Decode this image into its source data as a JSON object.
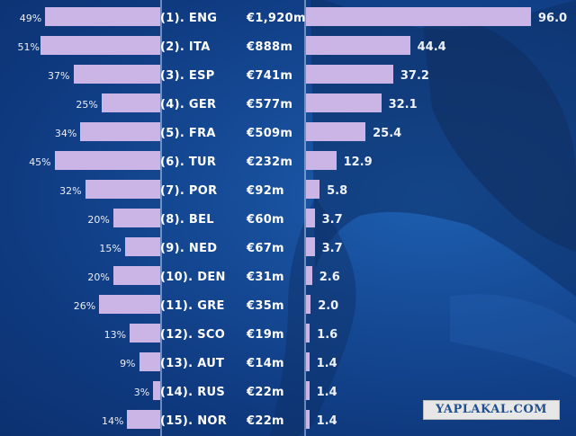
{
  "chart_data": {
    "type": "bar",
    "categories": [
      "(1). ENG",
      "(2). ITA",
      "(3). ESP",
      "(4). GER",
      "(5). FRA",
      "(6). TUR",
      "(7). POR",
      "(8). BEL",
      "(9). NED",
      "(10). DEN",
      "(11). GRE",
      "(12). SCO",
      "(13). AUT",
      "(14). RUS",
      "(15). NOR"
    ],
    "money_labels": [
      "€1,920m",
      "€888m",
      "€741m",
      "€577m",
      "€509m",
      "€232m",
      "€92m",
      "€60m",
      "€67m",
      "€31m",
      "€35m",
      "€19m",
      "€14m",
      "€22m",
      "€22m"
    ],
    "left_series": {
      "values": [
        49,
        51,
        37,
        25,
        34,
        45,
        32,
        20,
        15,
        20,
        26,
        13,
        9,
        3,
        14
      ],
      "labels": [
        "49%",
        "51%",
        "37%",
        "25%",
        "34%",
        "45%",
        "32%",
        "20%",
        "15%",
        "20%",
        "26%",
        "13%",
        "9%",
        "3%",
        "14%"
      ],
      "color": "#cbb5e6"
    },
    "right_series": {
      "values": [
        96.0,
        44.4,
        37.2,
        32.1,
        25.4,
        12.9,
        5.8,
        3.7,
        3.7,
        2.6,
        2.0,
        1.6,
        1.4,
        1.4,
        1.4
      ],
      "labels": [
        "96.0",
        "44.4",
        "37.2",
        "32.1",
        "25.4",
        "12.9",
        "5.8",
        "3.7",
        "3.7",
        "2.6",
        "2.0",
        "1.6",
        "1.4",
        "1.4",
        "1.4"
      ],
      "color": "#cbb5e6"
    },
    "background_color": "#164b97",
    "grid": false,
    "legend": "none"
  },
  "watermark": "YAPLAKAL.COM"
}
